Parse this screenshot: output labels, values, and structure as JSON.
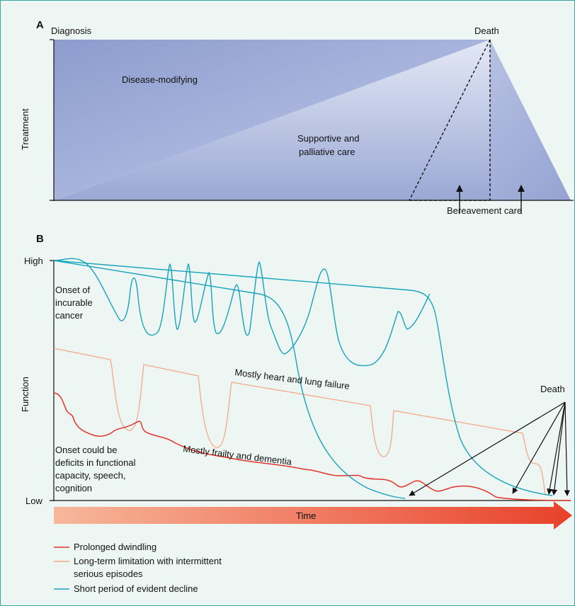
{
  "panel_a": {
    "letter": "A",
    "y_label": "Treatment",
    "label_diagnosis": "Diagnosis",
    "label_death": "Death",
    "label_disease_modifying": "Disease-modifying",
    "label_supportive_1": "Supportive and",
    "label_supportive_2": "palliative care",
    "label_bereavement": "Bereavement care"
  },
  "panel_b": {
    "letter": "B",
    "y_label": "Function",
    "y_high": "High",
    "y_low": "Low",
    "x_label": "Time",
    "onset_cancer": [
      "Onset of",
      "incurable",
      "cancer"
    ],
    "onset_deficits": [
      "Onset could be",
      "deficits in functional",
      "capacity, speech,",
      "cognition"
    ],
    "curve_heart_lung": "Mostly heart and  lung failure",
    "curve_frailty": "Mostly frailty and dementia",
    "death": "Death",
    "legend": [
      {
        "color": "#e2332a",
        "lines": [
          "Prolonged dwindling"
        ]
      },
      {
        "color": "#f3a987",
        "lines": [
          "Long-term limitation with intermittent",
          "serious episodes"
        ]
      },
      {
        "color": "#16a3bb",
        "lines": [
          "Short period of evident decline"
        ]
      }
    ]
  },
  "colors": {
    "red": "#e2332a",
    "salmon": "#f3a987",
    "teal": "#16a3bb",
    "triangle_dark": "#8f9fcf",
    "triangle_light": "#dfe5f3"
  }
}
